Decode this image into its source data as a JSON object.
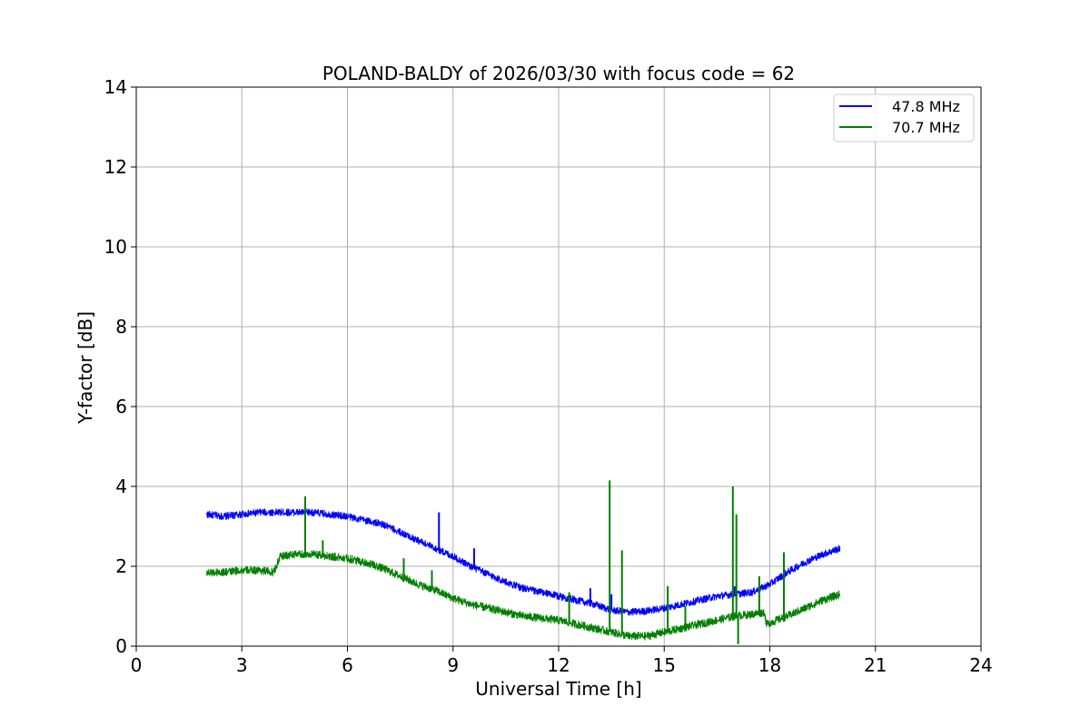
{
  "chart_data": {
    "type": "line",
    "title": "POLAND-BALDY of 2026/03/30 with focus code = 62",
    "xlabel": "Universal Time [h]",
    "ylabel": "Y-factor [dB]",
    "xlim": [
      0,
      24
    ],
    "ylim": [
      0,
      14
    ],
    "xticks": [
      "0",
      "3",
      "6",
      "9",
      "12",
      "15",
      "18",
      "21",
      "24"
    ],
    "yticks": [
      "0",
      "2",
      "4",
      "6",
      "8",
      "10",
      "12",
      "14"
    ],
    "grid": true,
    "legend": "top-right",
    "series": [
      {
        "name": "47.8 MHz",
        "color": "#0000ff",
        "noise": 0.09,
        "x": [
          2.0,
          2.5,
          3.0,
          3.5,
          4.0,
          4.5,
          5.0,
          5.5,
          6.0,
          6.5,
          7.0,
          7.5,
          8.0,
          8.5,
          9.0,
          9.5,
          10.0,
          10.5,
          11.0,
          11.5,
          12.0,
          12.5,
          13.0,
          13.5,
          14.0,
          14.5,
          15.0,
          15.5,
          16.0,
          16.5,
          17.0,
          17.5,
          18.0,
          18.5,
          19.0,
          19.5,
          20.0
        ],
        "y": [
          3.3,
          3.25,
          3.3,
          3.35,
          3.35,
          3.35,
          3.35,
          3.3,
          3.25,
          3.15,
          3.05,
          2.85,
          2.65,
          2.45,
          2.25,
          2.0,
          1.8,
          1.6,
          1.45,
          1.35,
          1.25,
          1.15,
          1.05,
          0.9,
          0.85,
          0.88,
          0.95,
          1.05,
          1.15,
          1.25,
          1.3,
          1.35,
          1.55,
          1.85,
          2.1,
          2.3,
          2.45
        ],
        "spikes": [
          [
            8.6,
            3.35
          ],
          [
            9.6,
            2.45
          ],
          [
            12.9,
            1.45
          ],
          [
            13.5,
            1.3
          ],
          [
            17.0,
            1.5
          ]
        ]
      },
      {
        "name": "70.7 MHz",
        "color": "#008000",
        "noise": 0.1,
        "x": [
          2.0,
          2.5,
          3.0,
          3.5,
          3.9,
          4.1,
          4.5,
          5.0,
          5.5,
          6.0,
          6.5,
          7.0,
          7.5,
          8.0,
          8.5,
          9.0,
          9.5,
          10.0,
          10.5,
          11.0,
          11.5,
          12.0,
          12.5,
          13.0,
          13.5,
          14.0,
          14.5,
          15.0,
          15.5,
          16.0,
          16.5,
          17.0,
          17.5,
          17.85,
          17.9,
          18.5,
          19.0,
          19.5,
          20.0
        ],
        "y": [
          1.85,
          1.85,
          1.9,
          1.9,
          1.85,
          2.25,
          2.3,
          2.3,
          2.25,
          2.2,
          2.1,
          1.95,
          1.75,
          1.55,
          1.4,
          1.2,
          1.05,
          0.95,
          0.85,
          0.75,
          0.7,
          0.65,
          0.55,
          0.45,
          0.35,
          0.25,
          0.25,
          0.35,
          0.45,
          0.55,
          0.65,
          0.75,
          0.8,
          0.85,
          0.55,
          0.75,
          0.95,
          1.15,
          1.3
        ],
        "spikes": [
          [
            4.8,
            3.75
          ],
          [
            5.3,
            2.65
          ],
          [
            7.6,
            2.2
          ],
          [
            8.4,
            1.9
          ],
          [
            12.3,
            1.35
          ],
          [
            13.45,
            4.15
          ],
          [
            13.8,
            2.4
          ],
          [
            15.1,
            1.5
          ],
          [
            15.6,
            1.0
          ],
          [
            16.95,
            4.0
          ],
          [
            17.05,
            3.3
          ],
          [
            17.1,
            0.05
          ],
          [
            17.7,
            1.75
          ],
          [
            18.4,
            2.35
          ]
        ]
      }
    ]
  }
}
